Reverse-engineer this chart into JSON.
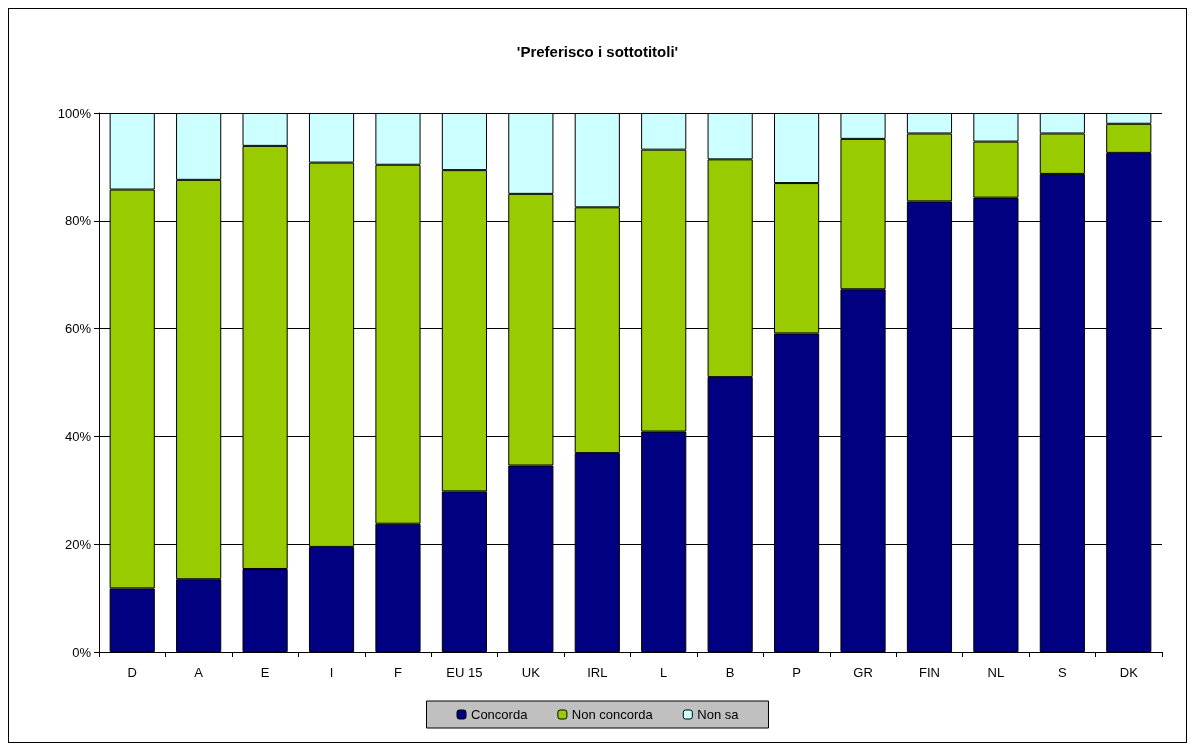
{
  "chart_data": {
    "type": "bar",
    "title": "'Preferisco i sottotitoli'",
    "stacked": true,
    "categories": [
      "D",
      "A",
      "E",
      "I",
      "F",
      "EU 15",
      "UK",
      "IRL",
      "L",
      "B",
      "P",
      "GR",
      "FIN",
      "NL",
      "S",
      "DK"
    ],
    "series": [
      {
        "name": "Concorda",
        "color": "#000080",
        "values": [
          11.8,
          13.5,
          15.4,
          19.5,
          23.8,
          29.8,
          34.6,
          36.9,
          40.9,
          51.0,
          59.1,
          67.3,
          83.6,
          84.3,
          88.7,
          92.6
        ]
      },
      {
        "name": "Non concorda",
        "color": "#99cc00",
        "values": [
          74.0,
          74.1,
          78.5,
          71.3,
          66.6,
          59.6,
          50.4,
          45.6,
          52.3,
          40.4,
          27.9,
          27.9,
          12.6,
          10.4,
          7.5,
          5.4
        ]
      },
      {
        "name": "Non sa",
        "color": "#ccffff",
        "values": [
          14.2,
          12.4,
          6.1,
          9.2,
          9.6,
          10.6,
          15.0,
          17.5,
          6.8,
          8.6,
          13.0,
          4.8,
          3.8,
          5.3,
          3.8,
          2.0
        ]
      }
    ],
    "ylim": [
      0,
      100
    ],
    "yticks": [
      {
        "value": 0,
        "label": "0%"
      },
      {
        "value": 20,
        "label": "20%"
      },
      {
        "value": 40,
        "label": "40%"
      },
      {
        "value": 60,
        "label": "60%"
      },
      {
        "value": 80,
        "label": "80%"
      },
      {
        "value": 100,
        "label": "100%"
      }
    ],
    "grid": "y",
    "legend": "bottom"
  }
}
